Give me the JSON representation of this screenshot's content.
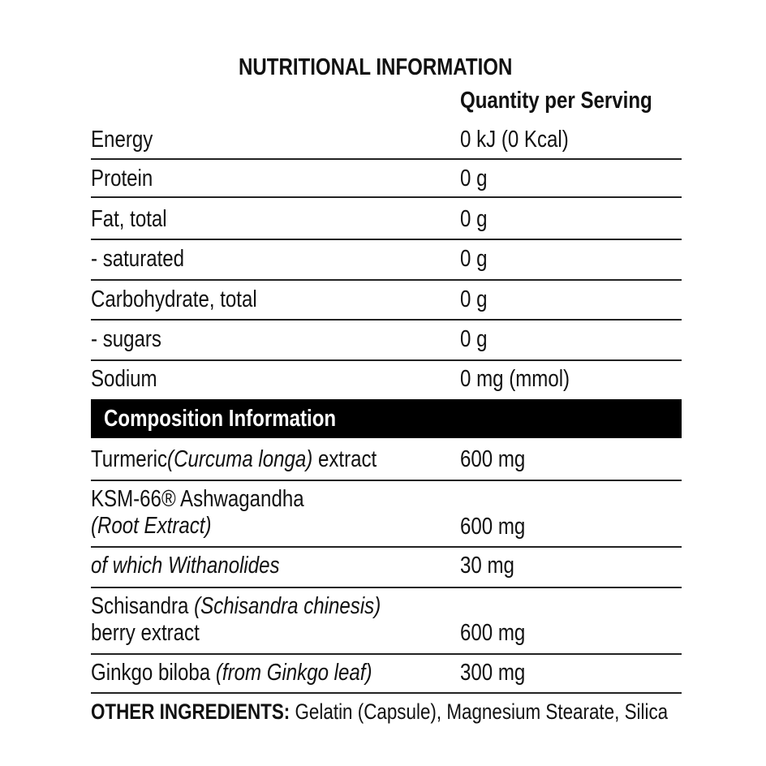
{
  "title": "NUTRITIONAL INFORMATION",
  "column_header": "Quantity per Serving",
  "nutrition_rows": [
    {
      "label": "Energy",
      "value": "0 kJ (0 Kcal)"
    },
    {
      "label": "Protein",
      "value": "0 g"
    },
    {
      "label": "Fat, total",
      "value": "0 g"
    },
    {
      "label": "- saturated",
      "value": "0 g"
    },
    {
      "label": "Carbohydrate, total",
      "value": "0 g"
    },
    {
      "label": "- sugars",
      "value": "0 g"
    },
    {
      "label": "Sodium",
      "value": "0 mg (mmol)"
    }
  ],
  "composition_header": "Composition Information",
  "composition_rows": [
    {
      "label": "Turmeric",
      "italic": "(Curcuma longa)",
      "suffix": " extract",
      "line2": "",
      "line2_italic": "",
      "value": "600 mg"
    },
    {
      "label": "KSM-66® Ashwagandha",
      "italic": "",
      "suffix": "",
      "line2": "",
      "line2_italic": "(Root Extract)",
      "value": "600 mg"
    },
    {
      "label": "",
      "italic": "of which Withanolides",
      "suffix": "",
      "line2": "",
      "line2_italic": "",
      "value": "30 mg"
    },
    {
      "label": "Schisandra ",
      "italic": "(Schisandra chinesis)",
      "suffix": "",
      "line2": "berry extract",
      "line2_italic": "",
      "value": "600 mg"
    },
    {
      "label": "Ginkgo biloba ",
      "italic": "(from Ginkgo leaf)",
      "suffix": "",
      "line2": "",
      "line2_italic": "",
      "value": "300 mg"
    }
  ],
  "other_ingredients": {
    "label": "OTHER INGREDIENTS:",
    "text": " Gelatin (Capsule), Magnesium Stearate, Silica"
  }
}
